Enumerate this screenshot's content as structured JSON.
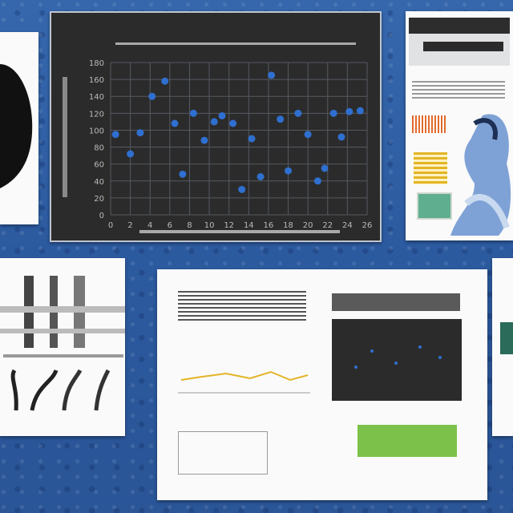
{
  "chart_data": {
    "type": "scatter",
    "title": "",
    "xlabel": "",
    "ylabel": "",
    "x_ticks": [
      "0",
      "2",
      "4",
      "6",
      "8",
      "10",
      "12",
      "14",
      "16",
      "18",
      "20",
      "22",
      "24",
      "26"
    ],
    "y_ticks": [
      "0",
      "20",
      "40",
      "60",
      "80",
      "100",
      "120",
      "140",
      "160",
      "180"
    ],
    "xlim": [
      0,
      26
    ],
    "ylim": [
      0,
      180
    ],
    "points": [
      {
        "x": 0.5,
        "y": 95
      },
      {
        "x": 2,
        "y": 72
      },
      {
        "x": 3,
        "y": 97
      },
      {
        "x": 4.2,
        "y": 140
      },
      {
        "x": 5.5,
        "y": 158
      },
      {
        "x": 6.5,
        "y": 108
      },
      {
        "x": 7.3,
        "y": 48
      },
      {
        "x": 8.4,
        "y": 120
      },
      {
        "x": 9.5,
        "y": 88
      },
      {
        "x": 10.5,
        "y": 110
      },
      {
        "x": 11.3,
        "y": 117
      },
      {
        "x": 12.4,
        "y": 108
      },
      {
        "x": 13.3,
        "y": 30
      },
      {
        "x": 14.3,
        "y": 90
      },
      {
        "x": 15.2,
        "y": 45
      },
      {
        "x": 16.3,
        "y": 165
      },
      {
        "x": 17.2,
        "y": 113
      },
      {
        "x": 18,
        "y": 52
      },
      {
        "x": 19,
        "y": 120
      },
      {
        "x": 20,
        "y": 95
      },
      {
        "x": 21,
        "y": 40
      },
      {
        "x": 21.7,
        "y": 55
      },
      {
        "x": 22.6,
        "y": 120
      },
      {
        "x": 23.4,
        "y": 92
      },
      {
        "x": 24.2,
        "y": 122
      },
      {
        "x": 25.3,
        "y": 123
      }
    ]
  },
  "palette": {
    "background": "#2f5fa6",
    "chart_bg": "#2b2b2b",
    "point": "#2f6fd0",
    "grid": "#555a62",
    "tick": "#b9b9b9"
  }
}
